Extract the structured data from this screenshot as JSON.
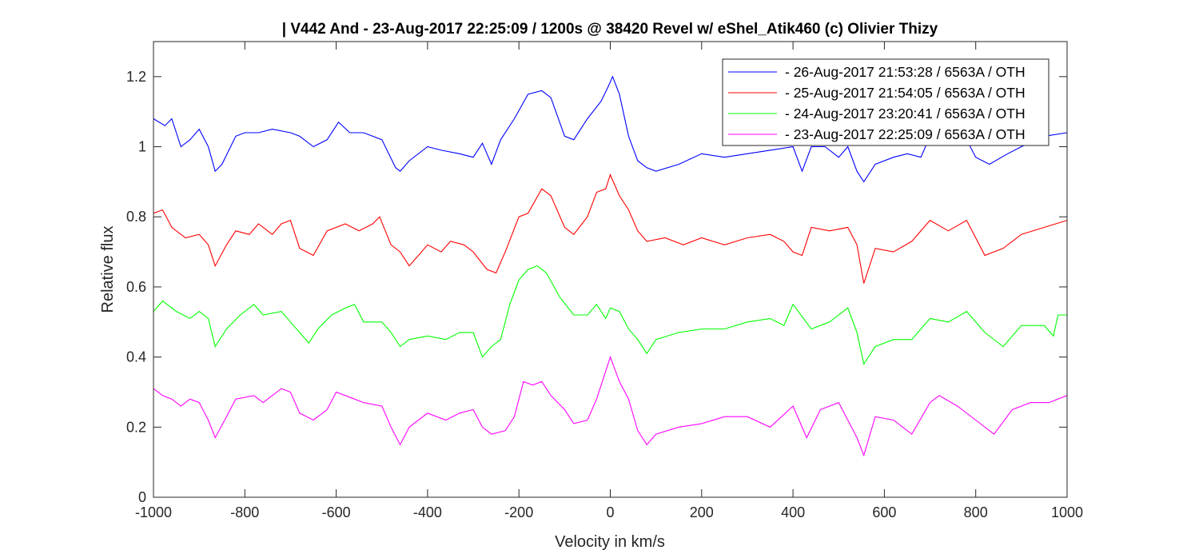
{
  "chart_data": {
    "type": "line",
    "title": "| V442 And - 23-Aug-2017 22:25:09 / 1200s @ 38420 Revel w/ eShel_Atik460 (c) Olivier Thizy",
    "xlabel": "Velocity in km/s",
    "ylabel": "Relative flux",
    "xlim": [
      -1000,
      1000
    ],
    "ylim": [
      0,
      1.3
    ],
    "xticks": [
      -1000,
      -800,
      -600,
      -400,
      -200,
      0,
      200,
      400,
      600,
      800,
      1000
    ],
    "yticks": [
      0,
      0.2,
      0.4,
      0.6,
      0.8,
      1,
      1.2
    ],
    "xtick_labels": [
      "-1000",
      "-800",
      "-600",
      "-400",
      "-200",
      "0",
      "200",
      "400",
      "600",
      "800",
      "1000"
    ],
    "ytick_labels": [
      "0",
      "0.2",
      "0.4",
      "0.6",
      "0.8",
      "1",
      "1.2"
    ],
    "grid": false,
    "legend_position": "top-right",
    "series": [
      {
        "name": "- 26-Aug-2017 21:53:28 / 6563A / OTH",
        "color": "#0000ff",
        "x": [
          -1000,
          -975,
          -960,
          -940,
          -920,
          -900,
          -880,
          -865,
          -850,
          -820,
          -800,
          -770,
          -740,
          -700,
          -680,
          -650,
          -620,
          -595,
          -570,
          -540,
          -500,
          -470,
          -460,
          -440,
          -400,
          -370,
          -330,
          -300,
          -280,
          -260,
          -240,
          -210,
          -180,
          -150,
          -130,
          -100,
          -80,
          -50,
          -20,
          -5,
          5,
          20,
          40,
          60,
          80,
          100,
          150,
          200,
          250,
          300,
          350,
          400,
          420,
          440,
          470,
          500,
          520,
          540,
          555,
          580,
          620,
          650,
          680,
          700,
          750,
          780,
          800,
          830,
          870,
          900,
          950,
          1000
        ],
        "y": [
          1.08,
          1.06,
          1.08,
          1.0,
          1.02,
          1.05,
          1.0,
          0.93,
          0.95,
          1.03,
          1.04,
          1.04,
          1.05,
          1.04,
          1.03,
          1.0,
          1.02,
          1.07,
          1.04,
          1.04,
          1.02,
          0.94,
          0.93,
          0.96,
          1.0,
          0.99,
          0.98,
          0.97,
          1.01,
          0.95,
          1.02,
          1.08,
          1.15,
          1.16,
          1.14,
          1.03,
          1.02,
          1.08,
          1.13,
          1.17,
          1.2,
          1.15,
          1.03,
          0.96,
          0.94,
          0.93,
          0.95,
          0.98,
          0.97,
          0.98,
          0.99,
          1.0,
          0.93,
          1.0,
          1.0,
          0.97,
          1.0,
          0.93,
          0.9,
          0.95,
          0.97,
          0.98,
          0.97,
          1.03,
          1.04,
          1.02,
          0.97,
          0.95,
          0.98,
          1.0,
          1.03,
          1.04
        ]
      },
      {
        "name": "- 25-Aug-2017 21:54:05 / 6563A / OTH",
        "color": "#ff0000",
        "x": [
          -1000,
          -980,
          -960,
          -930,
          -900,
          -880,
          -865,
          -840,
          -820,
          -790,
          -770,
          -740,
          -720,
          -700,
          -680,
          -650,
          -620,
          -580,
          -550,
          -520,
          -505,
          -480,
          -460,
          -440,
          -420,
          -400,
          -370,
          -350,
          -320,
          -300,
          -270,
          -250,
          -230,
          -200,
          -180,
          -150,
          -130,
          -100,
          -80,
          -50,
          -30,
          -10,
          0,
          20,
          40,
          60,
          80,
          120,
          160,
          200,
          250,
          300,
          350,
          380,
          400,
          420,
          440,
          480,
          520,
          540,
          555,
          580,
          620,
          660,
          700,
          740,
          780,
          820,
          860,
          900,
          950,
          1000
        ],
        "y": [
          0.81,
          0.82,
          0.77,
          0.74,
          0.75,
          0.72,
          0.66,
          0.72,
          0.76,
          0.75,
          0.78,
          0.75,
          0.78,
          0.79,
          0.71,
          0.69,
          0.76,
          0.78,
          0.76,
          0.78,
          0.8,
          0.72,
          0.7,
          0.66,
          0.69,
          0.72,
          0.7,
          0.73,
          0.72,
          0.7,
          0.65,
          0.64,
          0.7,
          0.8,
          0.81,
          0.88,
          0.86,
          0.77,
          0.75,
          0.8,
          0.87,
          0.88,
          0.92,
          0.86,
          0.82,
          0.76,
          0.73,
          0.74,
          0.72,
          0.74,
          0.72,
          0.74,
          0.75,
          0.73,
          0.7,
          0.69,
          0.77,
          0.76,
          0.77,
          0.72,
          0.61,
          0.71,
          0.7,
          0.73,
          0.79,
          0.76,
          0.79,
          0.69,
          0.71,
          0.75,
          0.77,
          0.79
        ]
      },
      {
        "name": "- 24-Aug-2017 23:20:41 / 6563A / OTH",
        "color": "#00ff00",
        "x": [
          -1000,
          -980,
          -950,
          -920,
          -900,
          -880,
          -865,
          -840,
          -810,
          -780,
          -760,
          -720,
          -700,
          -680,
          -660,
          -640,
          -610,
          -580,
          -560,
          -540,
          -500,
          -480,
          -460,
          -440,
          -400,
          -360,
          -330,
          -300,
          -280,
          -260,
          -240,
          -220,
          -200,
          -180,
          -160,
          -140,
          -110,
          -80,
          -50,
          -30,
          -10,
          0,
          20,
          40,
          60,
          80,
          100,
          150,
          200,
          250,
          300,
          350,
          380,
          400,
          440,
          480,
          520,
          540,
          555,
          580,
          620,
          660,
          700,
          740,
          780,
          820,
          860,
          900,
          950,
          970,
          980,
          1000
        ],
        "y": [
          0.53,
          0.56,
          0.53,
          0.51,
          0.53,
          0.51,
          0.43,
          0.48,
          0.52,
          0.55,
          0.52,
          0.53,
          0.5,
          0.47,
          0.44,
          0.48,
          0.52,
          0.54,
          0.55,
          0.5,
          0.5,
          0.47,
          0.43,
          0.45,
          0.46,
          0.45,
          0.47,
          0.47,
          0.4,
          0.43,
          0.45,
          0.55,
          0.62,
          0.65,
          0.66,
          0.64,
          0.57,
          0.52,
          0.52,
          0.55,
          0.51,
          0.54,
          0.53,
          0.48,
          0.45,
          0.41,
          0.45,
          0.47,
          0.48,
          0.48,
          0.5,
          0.51,
          0.49,
          0.55,
          0.48,
          0.5,
          0.54,
          0.47,
          0.38,
          0.43,
          0.45,
          0.45,
          0.51,
          0.5,
          0.53,
          0.47,
          0.43,
          0.49,
          0.49,
          0.46,
          0.52,
          0.52
        ]
      },
      {
        "name": "- 23-Aug-2017 22:25:09 / 6563A / OTH",
        "color": "#ff00ff",
        "x": [
          -1000,
          -980,
          -960,
          -940,
          -920,
          -900,
          -880,
          -865,
          -840,
          -820,
          -780,
          -760,
          -720,
          -700,
          -680,
          -650,
          -620,
          -600,
          -560,
          -540,
          -500,
          -480,
          -460,
          -440,
          -400,
          -360,
          -330,
          -300,
          -280,
          -260,
          -230,
          -210,
          -190,
          -170,
          -150,
          -130,
          -100,
          -80,
          -50,
          -30,
          -10,
          0,
          20,
          40,
          60,
          80,
          100,
          150,
          200,
          250,
          300,
          350,
          400,
          430,
          460,
          500,
          540,
          555,
          580,
          620,
          660,
          700,
          720,
          760,
          800,
          840,
          880,
          920,
          960,
          1000
        ],
        "y": [
          0.31,
          0.29,
          0.28,
          0.26,
          0.28,
          0.27,
          0.22,
          0.17,
          0.23,
          0.28,
          0.29,
          0.27,
          0.31,
          0.3,
          0.24,
          0.22,
          0.25,
          0.3,
          0.28,
          0.27,
          0.26,
          0.2,
          0.15,
          0.2,
          0.24,
          0.22,
          0.24,
          0.25,
          0.2,
          0.18,
          0.19,
          0.23,
          0.33,
          0.32,
          0.33,
          0.29,
          0.25,
          0.21,
          0.22,
          0.28,
          0.36,
          0.4,
          0.33,
          0.28,
          0.19,
          0.15,
          0.18,
          0.2,
          0.21,
          0.23,
          0.23,
          0.2,
          0.26,
          0.17,
          0.25,
          0.27,
          0.17,
          0.12,
          0.23,
          0.22,
          0.18,
          0.27,
          0.29,
          0.26,
          0.22,
          0.18,
          0.25,
          0.27,
          0.27,
          0.29
        ]
      }
    ]
  }
}
